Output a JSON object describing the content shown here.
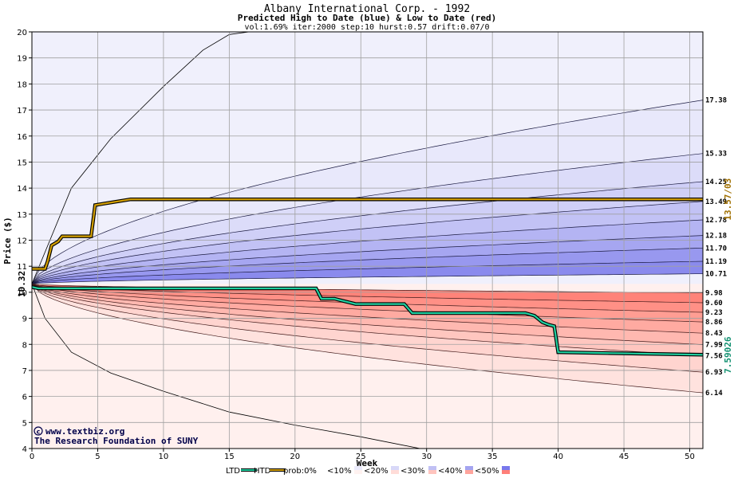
{
  "chart_data": {
    "type": "area",
    "title": "Albany International Corp. - 1992",
    "subtitle": "Predicted High to Date (blue) &  Low to Date (red)",
    "params": "vol:1.69% iter:2000 step:10 hurst:0.57 drift:0.07/0",
    "xlabel": "Week",
    "ylabel": "Price ($)",
    "xlim": [
      0,
      51
    ],
    "ylim": [
      4,
      20
    ],
    "x_ticks": [
      0,
      5,
      10,
      15,
      20,
      25,
      30,
      35,
      40,
      45,
      50
    ],
    "y_ticks": [
      4,
      5,
      6,
      7,
      8,
      9,
      10,
      11,
      12,
      13,
      14,
      15,
      16,
      17,
      18,
      19,
      20
    ],
    "grid": true,
    "start_price": 10.32,
    "start_price_label": "10.32",
    "upper_band_end_values": [
      17.38,
      15.33,
      14.25,
      13.49,
      12.78,
      12.18,
      11.7,
      11.19,
      10.71
    ],
    "upper_band_end_labels": [
      "17.38",
      "15.33",
      "14.25",
      "13.49",
      "12.78",
      "12.18",
      "11.70",
      "11.19",
      "10.71"
    ],
    "lower_band_end_values": [
      9.98,
      9.6,
      9.23,
      8.86,
      8.43,
      7.99,
      7.56,
      6.93,
      6.14
    ],
    "lower_band_end_labels": [
      "9.98",
      "9.60",
      "9.23",
      "8.86",
      "8.43",
      "7.99",
      "7.56",
      "6.93",
      "6.14"
    ],
    "htd_final_label": "13.57/03",
    "ltd_final_label": "7.59026",
    "series": [
      {
        "name": "HTD",
        "color": "#d4a000",
        "x": [
          0,
          1,
          1.2,
          1.5,
          2,
          2.3,
          4.5,
          4.8,
          7.5,
          51
        ],
        "y": [
          10.9,
          10.9,
          11.2,
          11.8,
          11.95,
          12.15,
          12.15,
          13.35,
          13.57,
          13.57
        ]
      },
      {
        "name": "LTD",
        "color": "#20d0a0",
        "x": [
          0,
          0.5,
          21.6,
          22,
          23,
          23.8,
          24.6,
          28.3,
          28.9,
          37.5,
          38.2,
          38.8,
          39.3,
          39.7,
          40,
          51
        ],
        "y": [
          10.2,
          10.15,
          10.15,
          9.75,
          9.75,
          9.65,
          9.55,
          9.55,
          9.2,
          9.2,
          9.1,
          8.85,
          8.75,
          8.7,
          7.7,
          7.6
        ]
      }
    ],
    "outer_envelope": {
      "upper": {
        "x": [
          0,
          3,
          6,
          10,
          13,
          15,
          16.5
        ],
        "y": [
          10.32,
          14.0,
          15.9,
          17.9,
          19.3,
          19.9,
          20.0
        ]
      },
      "lower": {
        "x": [
          0,
          1,
          3,
          6,
          10,
          15,
          20,
          25,
          29.5
        ],
        "y": [
          10.32,
          9.0,
          7.7,
          6.9,
          6.2,
          5.4,
          4.9,
          4.45,
          4.0
        ]
      }
    },
    "colors": {
      "bg_blue": "#f0f0fc",
      "bg_red": "#fff0ee",
      "grid": "#a0a0a0",
      "frame": "#000000",
      "htd_label": "#a07000",
      "ltd_label": "#109070",
      "watermark": "#00004a"
    },
    "legend_placement": "bottom-center",
    "legend": {
      "ltd": "LTD",
      "htd": "HTD",
      "prob": "prob:0%",
      "b10": "<10%",
      "b20": "<20%",
      "b30": "<30%",
      "b40": "<40%",
      "b50": "<50%"
    },
    "legend_colors": {
      "prob0": "#ffffff",
      "b10_blue": "#ececfc",
      "b10_red": "#fff2f0",
      "b20_blue": "#d8d8f8",
      "b20_red": "#ffdcd8",
      "b30_blue": "#c0c0f4",
      "b30_red": "#ffc4be",
      "b40_blue": "#a4a4f0",
      "b40_red": "#ffa49c",
      "b50_blue": "#7878ec",
      "b50_red": "#ff7f78"
    },
    "watermark_line1": "www.textbiz.org",
    "watermark_line2": "The Research Foundation of SUNY"
  }
}
